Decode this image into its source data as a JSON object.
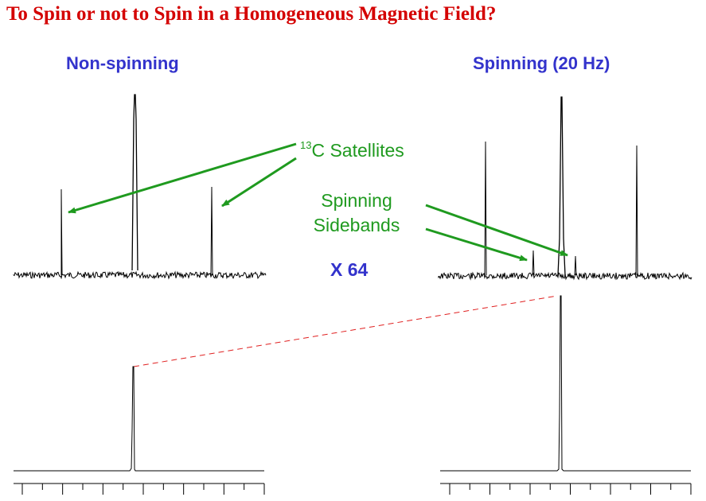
{
  "title": "To Spin or not to Spin in a Homogeneous Magnetic Field?",
  "left_label": "Non-spinning",
  "right_label": "Spinning (20 Hz)",
  "satellites": {
    "superscript": "13",
    "text": "C Satellites"
  },
  "sidebands": {
    "line1": "Spinning",
    "line2": "Sidebands"
  },
  "scale": "X 64",
  "colors": {
    "title": "#d40000",
    "label": "#3333cc",
    "annotation": "#1f9a1f",
    "dashed": "#e02020",
    "trace": "#000000"
  }
}
